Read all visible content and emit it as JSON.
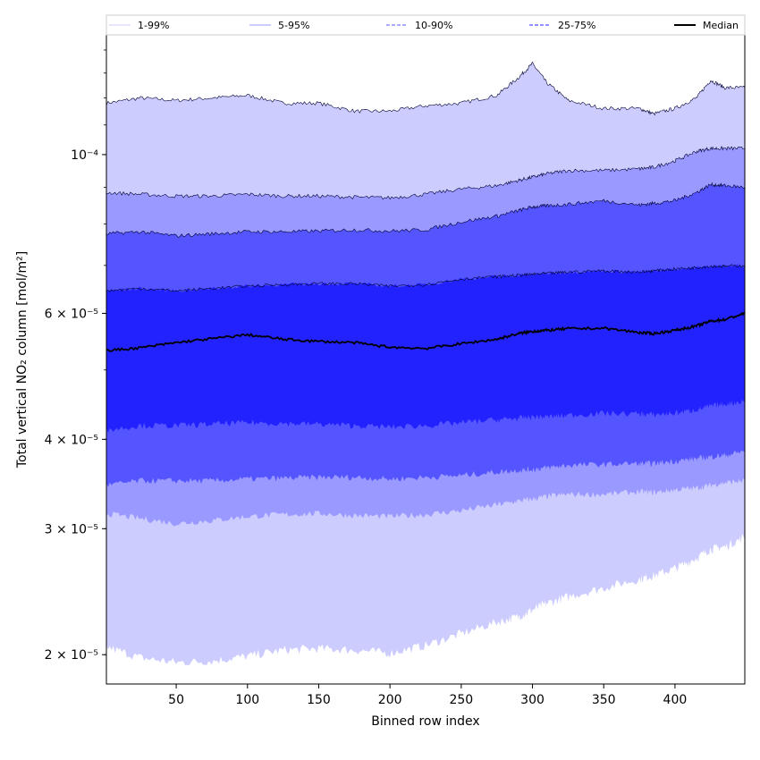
{
  "chart_data": {
    "type": "area",
    "xlabel": "Binned row index",
    "ylabel": "Total vertical NO₂ column [mol/m²]",
    "xlim": [
      1,
      449
    ],
    "ylim": [
      1.82e-05,
      0.000147
    ],
    "yscale": "log",
    "grid": false,
    "legend_position": "top",
    "x_ticks": [
      50,
      100,
      150,
      200,
      250,
      300,
      350,
      400
    ],
    "y_ticks": [
      {
        "value": 2e-05,
        "label": "2 × 10⁻⁵"
      },
      {
        "value": 3e-05,
        "label": "3 × 10⁻⁵"
      },
      {
        "value": 4e-05,
        "label": "4 × 10⁻⁵"
      },
      {
        "value": 6e-05,
        "label": "6 × 10⁻⁵"
      },
      {
        "value": 0.0001,
        "label": "10⁻⁴"
      }
    ],
    "x": [
      1,
      25,
      50,
      75,
      100,
      125,
      150,
      175,
      200,
      225,
      250,
      275,
      290,
      300,
      310,
      325,
      350,
      375,
      385,
      400,
      415,
      425,
      435,
      449
    ],
    "series": [
      {
        "name": "1-99%",
        "color": "#ccccff",
        "lower": [
          2.05e-05,
          1.98e-05,
          1.95e-05,
          1.96e-05,
          1.99e-05,
          2.03e-05,
          2.04e-05,
          2.03e-05,
          2.01e-05,
          2.06e-05,
          2.14e-05,
          2.22e-05,
          2.26e-05,
          2.31e-05,
          2.36e-05,
          2.41e-05,
          2.48e-05,
          2.55e-05,
          2.58e-05,
          2.64e-05,
          2.73e-05,
          2.81e-05,
          2.83e-05,
          2.92e-05
        ],
        "upper": [
          0.000118,
          0.00012,
          0.000119,
          0.00012,
          0.000121,
          0.000118,
          0.000118,
          0.000115,
          0.000115,
          0.000117,
          0.000118,
          0.000121,
          0.000128,
          0.000134,
          0.000126,
          0.000119,
          0.000116,
          0.000116,
          0.000114,
          0.000116,
          0.00012,
          0.000127,
          0.000124,
          0.000124
        ]
      },
      {
        "name": "5-95%",
        "color": "#9999ff",
        "lower": [
          3.15e-05,
          3.1e-05,
          3.05e-05,
          3.08e-05,
          3.12e-05,
          3.14e-05,
          3.15e-05,
          3.13e-05,
          3.12e-05,
          3.14e-05,
          3.18e-05,
          3.24e-05,
          3.28e-05,
          3.3e-05,
          3.33e-05,
          3.35e-05,
          3.35e-05,
          3.38e-05,
          3.37e-05,
          3.4e-05,
          3.42e-05,
          3.45e-05,
          3.48e-05,
          3.5e-05
        ],
        "upper": [
          8.85e-05,
          8.8e-05,
          8.75e-05,
          8.75e-05,
          8.8e-05,
          8.75e-05,
          8.75e-05,
          8.72e-05,
          8.7e-05,
          8.8e-05,
          8.95e-05,
          9.05e-05,
          9.2e-05,
          9.3e-05,
          9.4e-05,
          9.5e-05,
          9.5e-05,
          9.55e-05,
          9.6e-05,
          9.8e-05,
          0.000101,
          0.000102,
          0.000102,
          0.000102
        ]
      },
      {
        "name": "10-90%",
        "color": "#5555ff",
        "lower": [
          3.45e-05,
          3.5e-05,
          3.5e-05,
          3.5e-05,
          3.52e-05,
          3.53e-05,
          3.54e-05,
          3.54e-05,
          3.52e-05,
          3.54e-05,
          3.56e-05,
          3.6e-05,
          3.62e-05,
          3.63e-05,
          3.65e-05,
          3.68e-05,
          3.69e-05,
          3.7e-05,
          3.7e-05,
          3.73e-05,
          3.76e-05,
          3.78e-05,
          3.8e-05,
          3.85e-05
        ],
        "upper": [
          7.75e-05,
          7.8e-05,
          7.7e-05,
          7.75e-05,
          7.8e-05,
          7.8e-05,
          7.82e-05,
          7.85e-05,
          7.82e-05,
          7.85e-05,
          8.05e-05,
          8.2e-05,
          8.35e-05,
          8.45e-05,
          8.48e-05,
          8.52e-05,
          8.62e-05,
          8.5e-05,
          8.55e-05,
          8.62e-05,
          8.85e-05,
          9.08e-05,
          9.05e-05,
          9e-05
        ]
      },
      {
        "name": "25-75%",
        "color": "#2222ff",
        "lower": [
          4.12e-05,
          4.18e-05,
          4.18e-05,
          4.2e-05,
          4.22e-05,
          4.21e-05,
          4.2e-05,
          4.18e-05,
          4.16e-05,
          4.18e-05,
          4.22e-05,
          4.26e-05,
          4.28e-05,
          4.3e-05,
          4.3e-05,
          4.32e-05,
          4.35e-05,
          4.34e-05,
          4.33e-05,
          4.35e-05,
          4.4e-05,
          4.45e-05,
          4.48e-05,
          4.52e-05
        ],
        "upper": [
          6.45e-05,
          6.5e-05,
          6.45e-05,
          6.5e-05,
          6.55e-05,
          6.58e-05,
          6.6e-05,
          6.6e-05,
          6.55e-05,
          6.58e-05,
          6.7e-05,
          6.75e-05,
          6.78e-05,
          6.8e-05,
          6.82e-05,
          6.85e-05,
          6.88e-05,
          6.85e-05,
          6.88e-05,
          6.92e-05,
          6.95e-05,
          6.98e-05,
          6.98e-05,
          7e-05
        ]
      }
    ],
    "median": {
      "name": "Median",
      "color": "#000000",
      "values": [
        5.32e-05,
        5.37e-05,
        5.46e-05,
        5.53e-05,
        5.6e-05,
        5.52e-05,
        5.48e-05,
        5.46e-05,
        5.38e-05,
        5.36e-05,
        5.44e-05,
        5.52e-05,
        5.62e-05,
        5.66e-05,
        5.68e-05,
        5.71e-05,
        5.72e-05,
        5.64e-05,
        5.62e-05,
        5.68e-05,
        5.76e-05,
        5.85e-05,
        5.88e-05,
        6e-05
      ]
    },
    "legend": [
      {
        "label": "1-99%",
        "color": "#ccccff",
        "style": "solid"
      },
      {
        "label": "5-95%",
        "color": "#9999ff",
        "style": "solid"
      },
      {
        "label": "10-90%",
        "color": "#5555ff",
        "style": "dashed"
      },
      {
        "label": "25-75%",
        "color": "#2222ff",
        "style": "dashed"
      },
      {
        "label": "Median",
        "color": "#000000",
        "style": "solid"
      }
    ]
  }
}
